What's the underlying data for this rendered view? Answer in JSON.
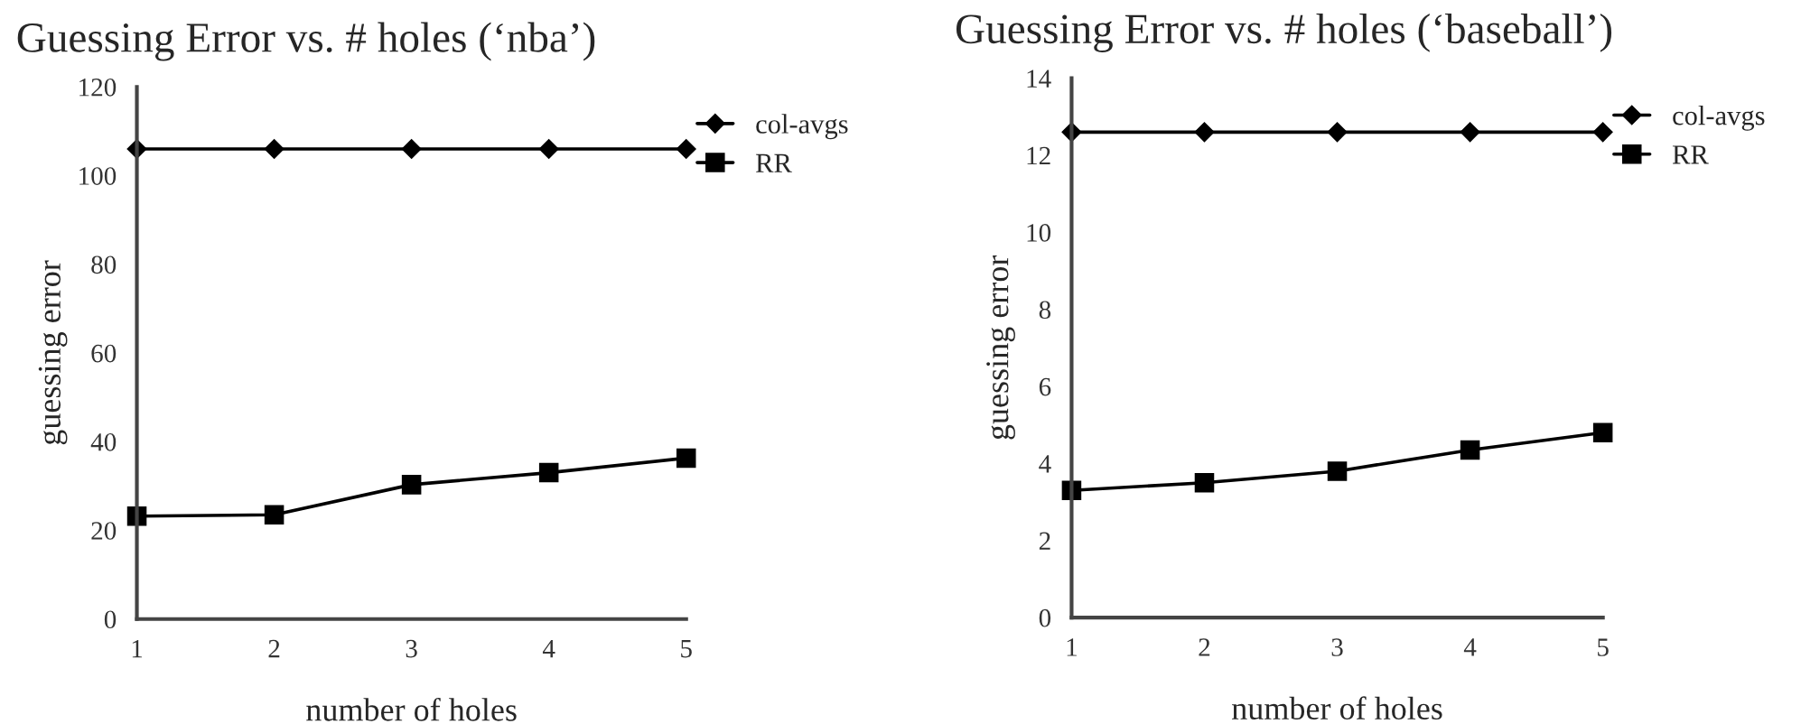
{
  "chart_data": [
    {
      "type": "line",
      "title": "Guessing Error vs. # holes (‘nba’)",
      "xlabel": "number of holes",
      "ylabel": "guessing error",
      "x": [
        1,
        2,
        3,
        4,
        5
      ],
      "xlim": [
        1,
        5
      ],
      "xticks": [
        1,
        2,
        3,
        4,
        5
      ],
      "ylim": [
        0,
        120
      ],
      "yticks": [
        0,
        20,
        40,
        60,
        80,
        100,
        120
      ],
      "grid": false,
      "legend": "top right",
      "line_style": "solid",
      "series": [
        {
          "name": "col-avgs",
          "color": "#000000",
          "marker": "diamond",
          "values": [
            106,
            106,
            106,
            106,
            106
          ]
        },
        {
          "name": "RR",
          "color": "#000000",
          "marker": "square",
          "values": [
            23.2,
            23.5,
            30.3,
            33,
            36.3
          ]
        }
      ]
    },
    {
      "type": "line",
      "title": "Guessing Error vs. # holes (‘baseball’)",
      "xlabel": "number of holes",
      "ylabel": "guessing error",
      "x": [
        1,
        2,
        3,
        4,
        5
      ],
      "xlim": [
        1,
        5
      ],
      "xticks": [
        1,
        2,
        3,
        4,
        5
      ],
      "ylim": [
        0,
        14
      ],
      "yticks": [
        0,
        2,
        4,
        6,
        8,
        10,
        12,
        14
      ],
      "grid": false,
      "legend": "top right",
      "line_style": "solid",
      "series": [
        {
          "name": "col-avgs",
          "color": "#000000",
          "marker": "diamond",
          "values": [
            12.6,
            12.6,
            12.6,
            12.6,
            12.6
          ]
        },
        {
          "name": "RR",
          "color": "#000000",
          "marker": "square",
          "values": [
            3.3,
            3.5,
            3.8,
            4.35,
            4.8
          ]
        }
      ]
    }
  ]
}
